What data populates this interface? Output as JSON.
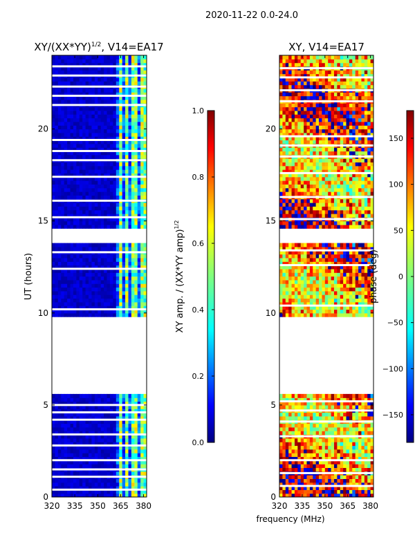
{
  "figure": {
    "suptitle": "2020-11-22 0.0-24.0"
  },
  "chart_data": [
    {
      "type": "heatmap",
      "title_text": "XY/(XX*YY)",
      "title_exponent": "1/2",
      "title_suffix": ", V14=EA17",
      "xlabel": "",
      "ylabel": "UT (hours)",
      "x_ticks": [
        320,
        335,
        350,
        365,
        380
      ],
      "xlim": [
        320,
        382
      ],
      "y_ticks": [
        0,
        5,
        10,
        15,
        20
      ],
      "ylim": [
        0,
        24
      ],
      "bright_channels_mhz": [
        [
          363.5,
          366.5
        ],
        [
          368,
          370
        ],
        [
          372,
          375
        ],
        [
          378,
          381
        ]
      ],
      "data_segments_hours": [
        [
          0,
          5.6
        ],
        [
          9.8,
          13.8
        ],
        [
          14.6,
          24
        ]
      ],
      "flag_lines_hours": [
        0.4,
        1.1,
        1.5,
        2.0,
        2.8,
        3.4,
        4.2,
        4.6,
        5.0,
        10.2,
        12.4,
        13.3,
        15.2,
        16.1,
        17.4,
        18.3,
        18.8,
        19.4,
        21.3,
        21.8,
        22.3,
        22.9,
        23.4
      ],
      "colorbar": {
        "label": "XY amp. / (XX*YY amp)",
        "label_exponent": "1/2",
        "min": 0.0,
        "max": 1.0,
        "ticks": [
          "0.0",
          "0.2",
          "0.4",
          "0.6",
          "0.8",
          "1.0"
        ],
        "colormap": "jet"
      }
    },
    {
      "type": "heatmap",
      "title_text": "XY, V14=EA17",
      "xlabel": "frequency (MHz)",
      "ylabel": "",
      "x_ticks": [
        320,
        335,
        350,
        365,
        380
      ],
      "xlim": [
        320,
        382
      ],
      "y_ticks": [
        0,
        5,
        10,
        15,
        20
      ],
      "ylim": [
        0,
        24
      ],
      "data_segments_hours": [
        [
          0,
          5.6
        ],
        [
          9.8,
          13.8
        ],
        [
          14.6,
          24
        ]
      ],
      "flag_lines_hours": [
        0.6,
        1.3,
        2.0,
        3.3,
        4.1,
        4.7,
        5.2,
        10.4,
        12.6,
        13.4,
        15.1,
        16.3,
        17.6,
        18.5,
        19.1,
        19.6,
        21.5,
        22.1,
        22.8,
        23.3
      ],
      "colorbar": {
        "label": "phase (deg)",
        "min": -180,
        "max": 180,
        "ticks": [
          "−150",
          "−100",
          "−50",
          "0",
          "50",
          "100",
          "150"
        ],
        "tick_values": [
          -150,
          -100,
          -50,
          0,
          50,
          100,
          150
        ],
        "colormap": "jet"
      }
    }
  ]
}
